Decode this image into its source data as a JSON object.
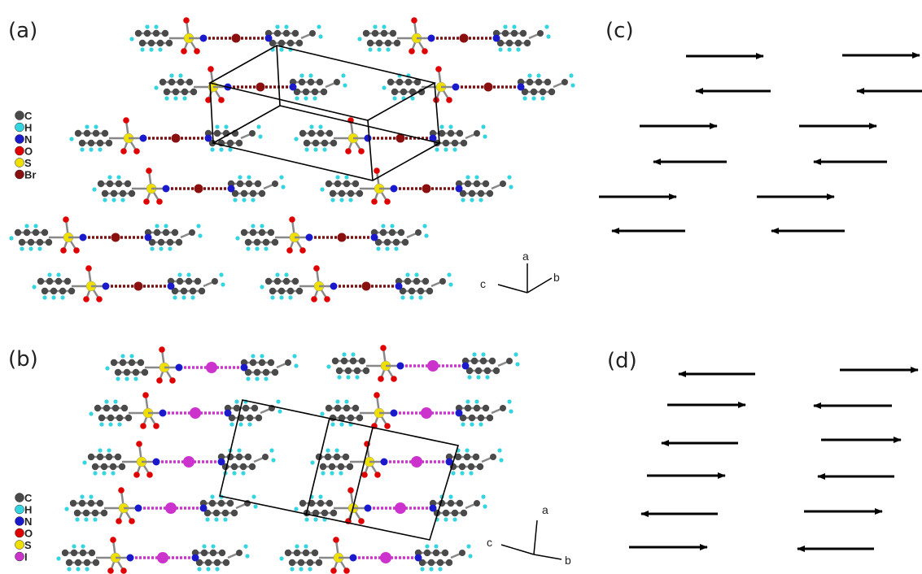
{
  "panels": {
    "a": "(a)",
    "b": "(b)",
    "c": "(c)",
    "d": "(d)"
  },
  "legend_a": [
    {
      "symbol": "C",
      "color": "#4a4a4a"
    },
    {
      "symbol": "H",
      "color": "#33d6e0"
    },
    {
      "symbol": "N",
      "color": "#1a1acc"
    },
    {
      "symbol": "O",
      "color": "#e00000"
    },
    {
      "symbol": "S",
      "color": "#f0e000"
    },
    {
      "symbol": "Br",
      "color": "#8a0f0f"
    }
  ],
  "legend_b": [
    {
      "symbol": "C",
      "color": "#4a4a4a"
    },
    {
      "symbol": "H",
      "color": "#33d6e0"
    },
    {
      "symbol": "N",
      "color": "#1a1acc"
    },
    {
      "symbol": "O",
      "color": "#e00000"
    },
    {
      "symbol": "S",
      "color": "#f0e000"
    },
    {
      "symbol": "I",
      "color": "#cc33cc"
    }
  ],
  "axes_a": {
    "a": "a",
    "b": "b",
    "c": "c"
  },
  "axes_b": {
    "a": "a",
    "b": "b",
    "c": "c"
  },
  "colors": {
    "carbon": "#4a4a4a",
    "hydrogen": "#33d6e0",
    "nitrogen": "#1a1acc",
    "oxygen": "#e00000",
    "sulfur": "#f0e000",
    "bromine": "#8a0f0f",
    "iodine": "#cc33cc",
    "bromine_bond": "#7a1010",
    "iodine_bond": "#cc33cc",
    "arrow": "#000000",
    "cell": "#000000"
  },
  "arrows_c": [
    {
      "dir": "right"
    },
    {
      "dir": "right"
    },
    {
      "dir": "left"
    },
    {
      "dir": "left"
    },
    {
      "dir": "right"
    },
    {
      "dir": "right"
    },
    {
      "dir": "left"
    },
    {
      "dir": "left"
    },
    {
      "dir": "right"
    },
    {
      "dir": "right"
    },
    {
      "dir": "left"
    },
    {
      "dir": "left"
    }
  ],
  "arrows_d": [
    {
      "dir": "left"
    },
    {
      "dir": "right"
    },
    {
      "dir": "right"
    },
    {
      "dir": "left"
    },
    {
      "dir": "left"
    },
    {
      "dir": "right"
    },
    {
      "dir": "right"
    },
    {
      "dir": "left"
    },
    {
      "dir": "left"
    },
    {
      "dir": "right"
    },
    {
      "dir": "right"
    },
    {
      "dir": "left"
    }
  ]
}
